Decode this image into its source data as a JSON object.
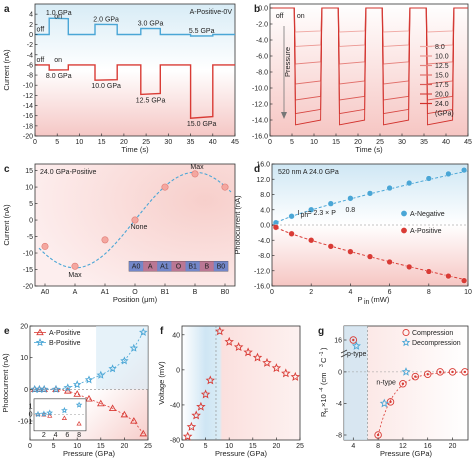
{
  "panels": {
    "a": {
      "letter": "a",
      "title": "A-Positive-0V",
      "xlabel": "Time (s)",
      "ylabel": "Current (nA)",
      "xlim": [
        0,
        45
      ],
      "ylim": [
        -20,
        6
      ],
      "xticks": [
        "0",
        "5",
        "10",
        "15",
        "20",
        "25",
        "30",
        "35",
        "40",
        "45"
      ],
      "yticks": [
        "4",
        "2",
        "0",
        "-2",
        "-4",
        "-6",
        "-8",
        "-10",
        "-12",
        "-14",
        "-16",
        "-18",
        "-20"
      ],
      "labels_top": [
        "1.0 GPa",
        "2.0 GPa",
        "3.0 GPa",
        "5.5 GPa"
      ],
      "labels_bottom": [
        "8.0 GPa",
        "10.0 GPa",
        "12.5 GPa",
        "15.0 GPa"
      ],
      "off_label": "off",
      "on_label": "on",
      "top_color": "#4aa6d6",
      "bottom_color": "#d93b35"
    },
    "b": {
      "letter": "b",
      "xlabel": "Time (s)",
      "ylim": [
        -16,
        0.5
      ],
      "xticks": [
        "0",
        "5",
        "10",
        "15",
        "20",
        "25",
        "30",
        "35",
        "40",
        "45"
      ],
      "yticks": [
        "0.0",
        "-2.0",
        "-4.0",
        "-6.0",
        "-8.0",
        "-10.0",
        "-12.0",
        "-14.0",
        "-16.0"
      ],
      "legend": [
        "8.0",
        "10.0",
        "12.5",
        "15.0",
        "17.5",
        "20.0",
        "24.0",
        "(GPa)"
      ],
      "arrow_label": "Pressure",
      "off_label": "off",
      "on_label": "on"
    },
    "c": {
      "letter": "c",
      "title": "24.0 GPa-Positive",
      "xlabel": "Position (μm)",
      "ylabel": "Current (nA)",
      "ylim": [
        -20,
        17
      ],
      "xticks": [
        "A0",
        "A",
        "A1",
        "O",
        "B1",
        "B",
        "B0"
      ],
      "yticks": [
        "15",
        "10",
        "5",
        "0",
        "-5",
        "-10",
        "-15",
        "-20"
      ],
      "annotations": {
        "max_top": "Max",
        "max_bottom": "Max",
        "none": "None"
      },
      "inset_labels": [
        "A0",
        "A",
        "A1",
        "O",
        "B1",
        "B",
        "B0"
      ]
    },
    "d": {
      "letter": "d",
      "title": "520 nm  A  24.0 GPa",
      "xlabel": "P",
      "xlabel_sub": "in",
      "xlabel_unit": " (mW)",
      "ylabel": "Photocurrent (nA)",
      "xlim": [
        0,
        10
      ],
      "ylim": [
        -16,
        16
      ],
      "xticks": [
        "0",
        "2",
        "4",
        "6",
        "8",
        "10"
      ],
      "yticks": [
        "16.0",
        "12.0",
        "8.0",
        "4.0",
        "0.0",
        "-4.0",
        "-8.0",
        "-12.0",
        "-16.0"
      ],
      "formula": "I ph = 2.3 × P^0.8",
      "formula_parts": {
        "lhs": "I",
        "lhs_sub": "ph",
        "rhs": " = 2.3 × P",
        "rhs_sup": "0.8"
      },
      "legend": [
        "A-Negative",
        "A-Positive"
      ],
      "neg_color": "#4aa6d6",
      "pos_color": "#d93b35"
    },
    "e": {
      "letter": "e",
      "xlabel": "Pressure (GPa)",
      "ylabel": "Photocurrent (nA)",
      "xlim": [
        0,
        25
      ],
      "ylim": [
        -16,
        20
      ],
      "xticks": [
        "0",
        "5",
        "10",
        "15",
        "20",
        "25"
      ],
      "yticks": [
        "20",
        "10",
        "0",
        "-10"
      ],
      "legend": [
        "A-Positive",
        "B-Positive"
      ],
      "inset_xticks": [
        "2",
        "4",
        "6",
        "8"
      ],
      "inset_yticks": [
        "1",
        "0",
        "-1"
      ]
    },
    "f": {
      "letter": "f",
      "xlabel": "Pressure (GPa)",
      "ylabel": "Voltage (mV)",
      "xlim": [
        0,
        25
      ],
      "ylim": [
        -80,
        50
      ],
      "xticks": [
        "0",
        "5",
        "10",
        "15",
        "20",
        "25"
      ],
      "yticks": [
        "40",
        "0",
        "-40",
        "-80"
      ]
    },
    "g": {
      "letter": "g",
      "xlabel": "Pressure (GPa)",
      "ylabel": "R",
      "ylabel_sub": "H",
      "ylabel_rest": "×10",
      "ylabel_sup": "-4",
      "ylabel_unit": " (cm",
      "ylabel_unit_sup": "3",
      "ylabel_unit_end": " C",
      "ylabel_unit_sup2": "-1",
      "ylabel_close": ")",
      "xticks": [
        "4",
        "8",
        "12",
        "16",
        "20"
      ],
      "yticks": [
        "16",
        "0",
        "-4",
        "-8"
      ],
      "legend": [
        "Compression",
        "Decompression"
      ],
      "ptype": "p-type",
      "ntype": "n-type"
    }
  },
  "chart_data": [
    {
      "type": "line",
      "panel": "a",
      "title": "A-Positive-0V",
      "xlabel": "Time (s)",
      "ylabel": "Current (nA)",
      "series": [
        {
          "name": "1.0 GPa",
          "on": [
            3.2,
            7.5
          ],
          "level": 3.2,
          "baseline": 0
        },
        {
          "name": "2.0 GPa",
          "on": [
            13.5,
            18.5
          ],
          "level": 2.0,
          "baseline": 0
        },
        {
          "name": "3.0 GPa",
          "on": [
            23.8,
            28.2
          ],
          "level": 1.2,
          "baseline": 0
        },
        {
          "name": "5.5 GPa",
          "on": [
            35,
            40
          ],
          "level": -0.3,
          "baseline": 0
        },
        {
          "name": "8.0 GPa",
          "on": [
            3.2,
            7.5
          ],
          "level": -7.0,
          "baseline": -6
        },
        {
          "name": "10.0 GPa",
          "on": [
            13.5,
            18.5
          ],
          "level": -9.0,
          "baseline": -6
        },
        {
          "name": "12.5 GPa",
          "on": [
            23.8,
            28.2
          ],
          "level": -11.8,
          "baseline": -6
        },
        {
          "name": "15.0 GPa",
          "on": [
            35,
            40
          ],
          "level": -16.5,
          "baseline": -6
        }
      ]
    },
    {
      "type": "line",
      "panel": "b",
      "xlabel": "Time (s)",
      "on_intervals": [
        [
          5.5,
          11.5
        ],
        [
          15.5,
          21.5
        ],
        [
          25.5,
          31.5
        ],
        [
          35.5,
          41.5
        ]
      ],
      "series": [
        {
          "name": "8.0",
          "level": -3.0
        },
        {
          "name": "10.0",
          "level": -4.8
        },
        {
          "name": "12.5",
          "level": -7.0
        },
        {
          "name": "15.0",
          "level": -9.5
        },
        {
          "name": "17.5",
          "level": -11.5
        },
        {
          "name": "20.0",
          "level": -13.2
        },
        {
          "name": "24.0",
          "level": -14.6
        }
      ]
    },
    {
      "type": "scatter",
      "panel": "c",
      "title": "24.0 GPa-Positive",
      "xlabel": "Position (μm)",
      "ylabel": "Current (nA)",
      "categories": [
        "A0",
        "A",
        "A1",
        "O",
        "B1",
        "B",
        "B0"
      ],
      "points": [
        {
          "x": 0,
          "y": -8
        },
        {
          "x": 1,
          "y": -14
        },
        {
          "x": 2,
          "y": -6
        },
        {
          "x": 3,
          "y": 0
        },
        {
          "x": 4,
          "y": 10
        },
        {
          "x": 5,
          "y": 14
        },
        {
          "x": 6,
          "y": 10
        }
      ]
    },
    {
      "type": "scatter",
      "panel": "d",
      "title": "520 nm  A  24.0 GPa",
      "ylabel": "Photocurrent (nA)",
      "series": [
        {
          "name": "A-Negative",
          "x": [
            0.2,
            1,
            2,
            3,
            4,
            5,
            6,
            7,
            8,
            9,
            9.8
          ],
          "y": [
            0.6,
            2.3,
            4,
            5.6,
            7,
            8.3,
            9.7,
            11,
            12.2,
            13.4,
            14.4
          ]
        },
        {
          "name": "A-Positive",
          "x": [
            0.2,
            1,
            2,
            3,
            4,
            5,
            6,
            7,
            8,
            9,
            9.8
          ],
          "y": [
            -0.6,
            -2.3,
            -4,
            -5.6,
            -7,
            -8.3,
            -9.7,
            -11,
            -12.2,
            -13.4,
            -14.6
          ]
        }
      ]
    },
    {
      "type": "scatter",
      "panel": "e",
      "xlabel": "Pressure (GPa)",
      "ylabel": "Photocurrent (nA)",
      "series": [
        {
          "name": "A-Positive",
          "x": [
            1,
            2,
            3,
            5.5,
            8,
            10,
            12.5,
            15,
            17.5,
            20,
            22,
            24
          ],
          "y": [
            0,
            0,
            0,
            0,
            -0.5,
            -1.5,
            -3,
            -4.5,
            -6,
            -8,
            -10,
            -14
          ]
        },
        {
          "name": "B-Positive",
          "x": [
            1,
            2,
            3,
            5.5,
            8,
            10,
            12.5,
            15,
            17.5,
            20,
            22,
            24
          ],
          "y": [
            0,
            0,
            0,
            0,
            0.5,
            1.5,
            3,
            4.5,
            6.5,
            9,
            13,
            18
          ]
        }
      ]
    },
    {
      "type": "scatter",
      "panel": "f",
      "xlabel": "Pressure (GPa)",
      "ylabel": "Voltage (mV)",
      "x": [
        1.2,
        2,
        3,
        4,
        5,
        6,
        8,
        10,
        12,
        14,
        16,
        18,
        20,
        22,
        24
      ],
      "y": [
        -76,
        -65,
        -52,
        -42,
        -28,
        -12,
        44,
        32,
        26,
        20,
        14,
        8,
        2,
        -4,
        -8
      ]
    },
    {
      "type": "scatter",
      "panel": "g",
      "xlabel": "Pressure (GPa)",
      "series": [
        {
          "name": "Compression",
          "x": [
            4,
            8,
            10,
            12,
            14,
            16,
            18,
            20,
            22
          ],
          "y": [
            16,
            -8,
            -3.8,
            -1.5,
            -0.6,
            -0.3,
            0,
            0,
            0
          ]
        },
        {
          "name": "Decompression",
          "x": [
            4.5,
            9,
            12.5
          ],
          "y": [
            14,
            -4,
            0
          ]
        }
      ]
    }
  ]
}
